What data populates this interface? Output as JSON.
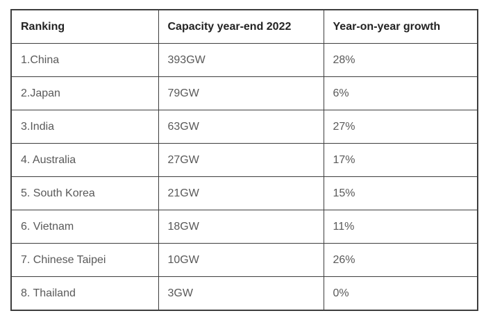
{
  "chart_data": {
    "type": "table",
    "columns": [
      "Ranking",
      "Capacity year-end 2022",
      "Year-on-year growth"
    ],
    "rows": [
      [
        "1.China",
        "393GW",
        "28%"
      ],
      [
        "2.Japan",
        "79GW",
        "6%"
      ],
      [
        "3.India",
        "63GW",
        "27%"
      ],
      [
        "4. Australia",
        "27GW",
        "17%"
      ],
      [
        "5. South Korea",
        "21GW",
        "15%"
      ],
      [
        "6. Vietnam",
        "18GW",
        "11%"
      ],
      [
        "7. Chinese Taipei",
        "10GW",
        "26%"
      ],
      [
        "8. Thailand",
        "3GW",
        "0%"
      ]
    ],
    "series": [
      {
        "name": "Capacity year-end 2022 (GW)",
        "values": [
          393,
          79,
          63,
          27,
          21,
          18,
          10,
          3
        ]
      },
      {
        "name": "Year-on-year growth (%)",
        "values": [
          28,
          6,
          27,
          17,
          15,
          11,
          26,
          0
        ]
      }
    ],
    "categories": [
      "China",
      "Japan",
      "India",
      "Australia",
      "South Korea",
      "Vietnam",
      "Chinese Taipei",
      "Thailand"
    ],
    "title": "",
    "legend": "off",
    "grid": "table-borders"
  },
  "colors": {
    "background": "#ffffff",
    "border": "#3d3d3d",
    "header_text": "#232323",
    "body_text": "#595959"
  }
}
